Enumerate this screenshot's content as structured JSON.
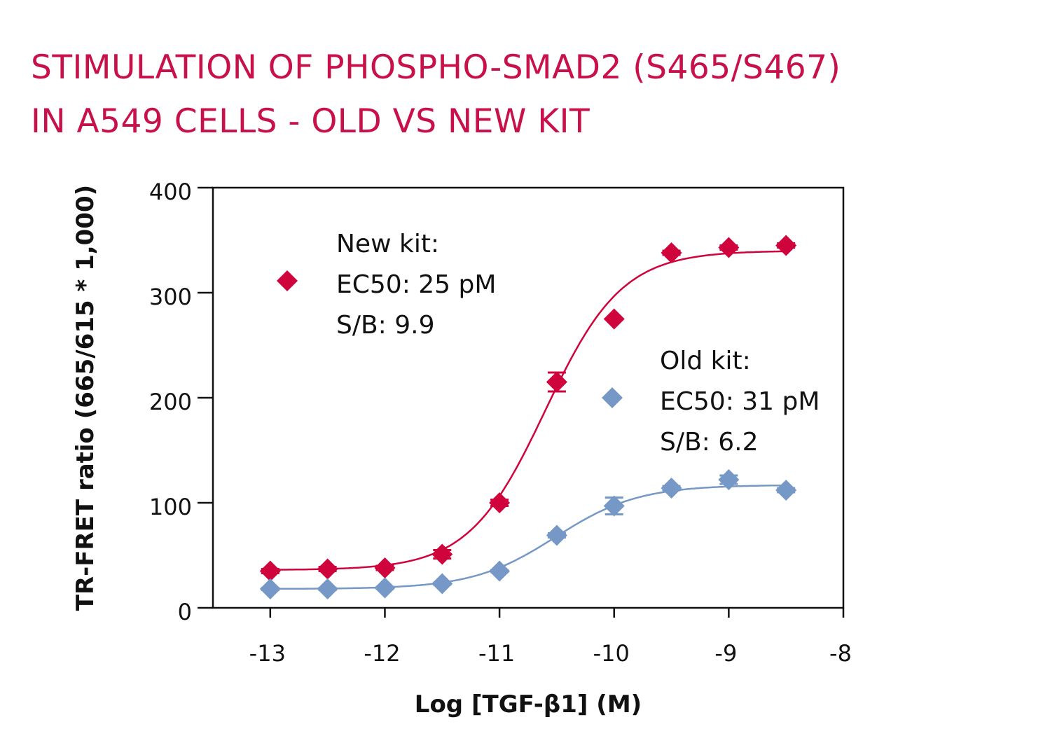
{
  "title_lines": [
    "STIMULATION OF PHOSPHO-SMAD2 (S465/S467)",
    "IN A549 CELLS - OLD VS NEW KIT"
  ],
  "colors": {
    "title": "#c8114a",
    "new_kit": "#d0043c",
    "old_kit": "#7598c6"
  },
  "chart_data": {
    "type": "scatter",
    "title": "STIMULATION OF PHOSPHO-SMAD2 (S465/S467) IN A549 CELLS - OLD VS NEW KIT",
    "xlabel": "Log [TGF-β1] (M)",
    "ylabel": "TR-FRET ratio (665/615 * 1,000)",
    "xlim": [
      -13.5,
      -8
    ],
    "ylim": [
      0,
      400
    ],
    "xticks": [
      -13,
      -12,
      -11,
      -10,
      -9,
      -8
    ],
    "xtick_labels": [
      "-13",
      "-12",
      "-11",
      "-10",
      "-9",
      "-8"
    ],
    "yticks": [
      0,
      100,
      200,
      300,
      400
    ],
    "ytick_labels": [
      "0",
      "100",
      "200",
      "300",
      "400"
    ],
    "grid": false,
    "x": [
      -13,
      -12.5,
      -12,
      -11.5,
      -11,
      -10.5,
      -10,
      -9.5,
      -9,
      -8.5
    ],
    "series": [
      {
        "key": "new",
        "values": [
          35,
          37,
          38,
          51,
          100,
          215,
          275,
          338,
          343,
          345
        ],
        "errors": [
          2,
          2,
          2,
          4,
          3,
          9,
          0,
          2,
          2,
          2
        ],
        "annotation": [
          "New kit:",
          "EC50: 25 pM",
          "S/B: 9.9"
        ]
      },
      {
        "key": "old",
        "values": [
          18,
          18,
          19,
          23,
          35,
          69,
          97,
          114,
          122,
          112
        ],
        "errors": [
          1,
          1,
          1,
          1,
          1,
          2,
          8,
          2,
          4,
          2
        ],
        "annotation": [
          "Old kit:",
          "EC50: 31 pM",
          "S/B: 6.2"
        ]
      }
    ]
  }
}
